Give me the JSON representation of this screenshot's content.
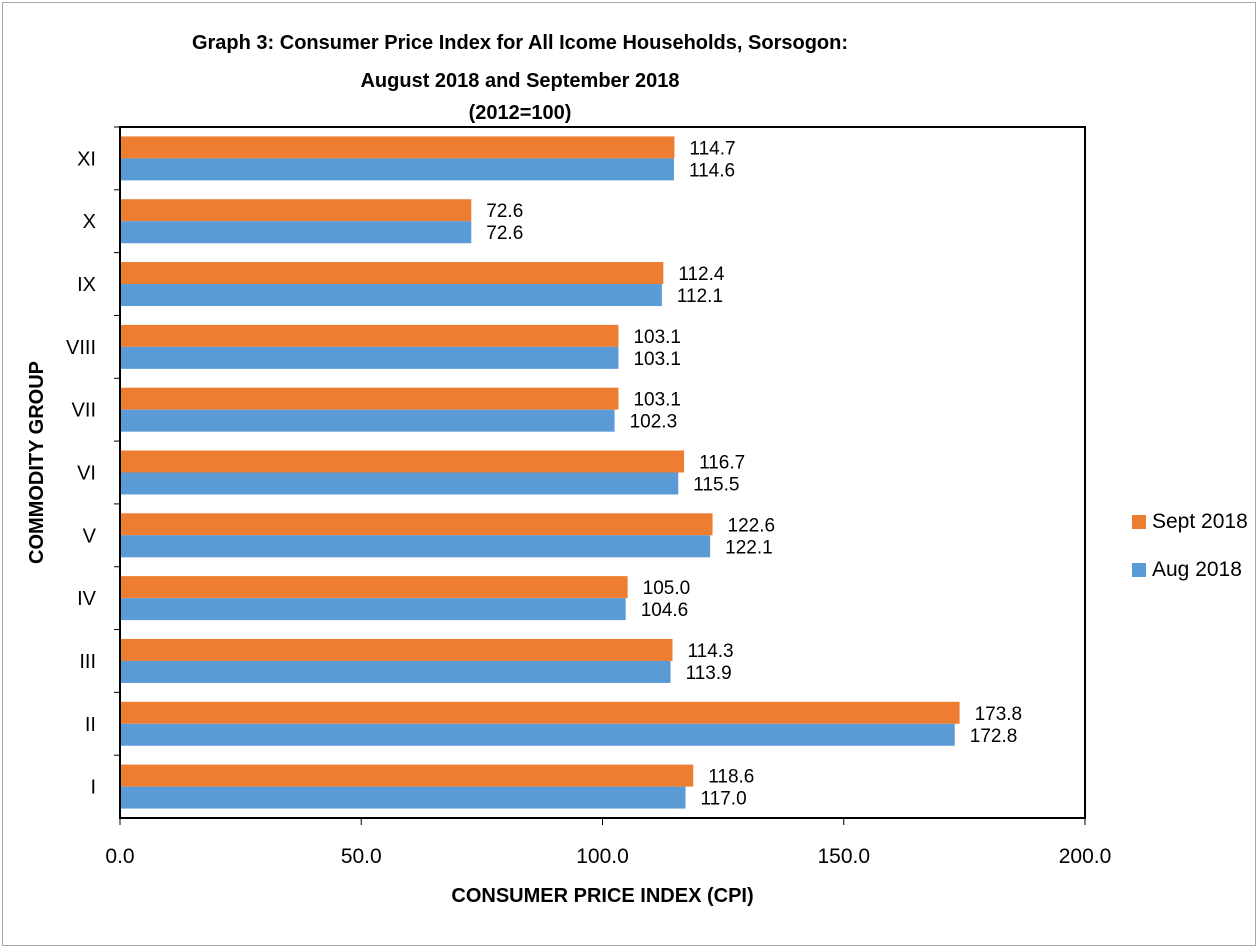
{
  "chart_data": {
    "type": "bar",
    "orientation": "horizontal",
    "title": "Graph 3:  Consumer Price Index for All Icome Households, Sorsogon:",
    "subtitle": "August 2018 and September 2018",
    "base_note": "(2012=100)",
    "xlabel": "CONSUMER PRICE INDEX (CPI)",
    "ylabel": "COMMODITY GROUP",
    "xlim": [
      0,
      200
    ],
    "xticks": [
      "0.0",
      "50.0",
      "100.0",
      "150.0",
      "200.0"
    ],
    "grid": false,
    "legend_position": "right",
    "categories": [
      "XI",
      "X",
      "IX",
      "VIII",
      "VII",
      "VI",
      "V",
      "IV",
      "III",
      "II",
      "I"
    ],
    "series": [
      {
        "name": "Sept 2018",
        "color": "#ed7d31",
        "values": [
          114.7,
          72.6,
          112.4,
          103.1,
          103.1,
          116.7,
          122.6,
          105.0,
          114.3,
          173.8,
          118.6
        ],
        "labels": [
          "114.7",
          "72.6",
          "112.4",
          "103.1",
          "103.1",
          "116.7",
          "122.6",
          "105.0",
          "114.3",
          "173.8",
          "118.6"
        ]
      },
      {
        "name": "Aug 2018",
        "color": "#5b9bd5",
        "values": [
          114.6,
          72.6,
          112.1,
          103.1,
          102.3,
          115.5,
          122.1,
          104.6,
          113.9,
          172.8,
          117.0
        ],
        "labels": [
          "114.6",
          "72.6",
          "112.1",
          "103.1",
          "102.3",
          "115.5",
          "122.1",
          "104.6",
          "113.9",
          "172.8",
          "117.0"
        ]
      }
    ]
  }
}
